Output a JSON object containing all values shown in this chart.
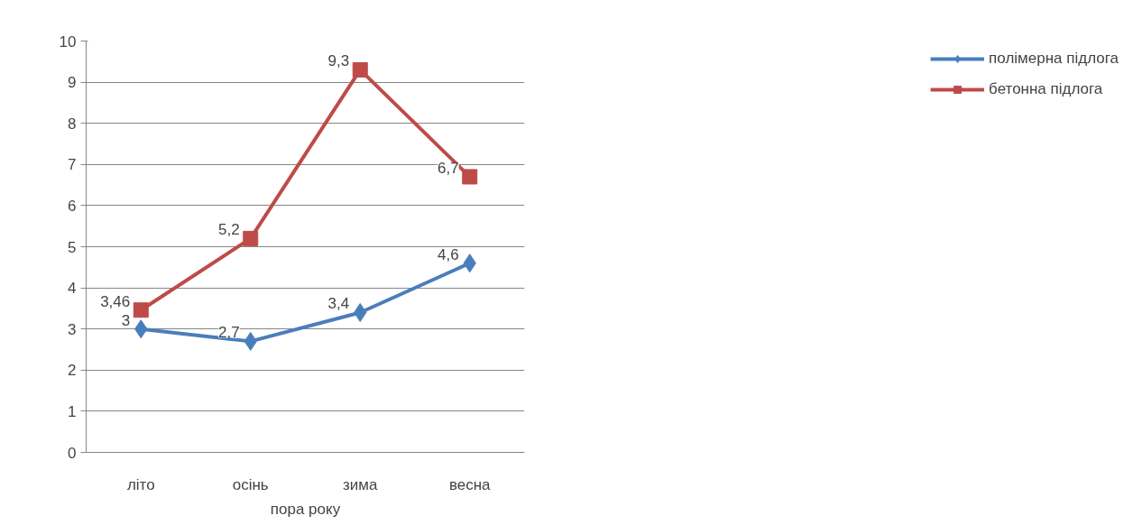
{
  "chart_data": {
    "type": "line",
    "xlabel": "пора року",
    "categories": [
      "літо",
      "осінь",
      "зима",
      "весна"
    ],
    "series": [
      {
        "name": "полімерна підлога",
        "color": "#4a7ebb",
        "marker": "diamond",
        "values": [
          3,
          2.7,
          3.4,
          4.6
        ],
        "value_labels": [
          "3",
          "2,7",
          "3,4",
          "4,6"
        ]
      },
      {
        "name": "бетонна підлога",
        "color": "#be4b48",
        "marker": "square",
        "values": [
          3.46,
          5.2,
          9.3,
          6.7
        ],
        "value_labels": [
          "3,46",
          "5,2",
          "9,3",
          "6,7"
        ]
      }
    ],
    "ylim": [
      0,
      10
    ],
    "yticks": [
      0,
      1,
      2,
      3,
      4,
      5,
      6,
      7,
      8,
      9,
      10
    ],
    "grid": "y",
    "legend": "right"
  }
}
